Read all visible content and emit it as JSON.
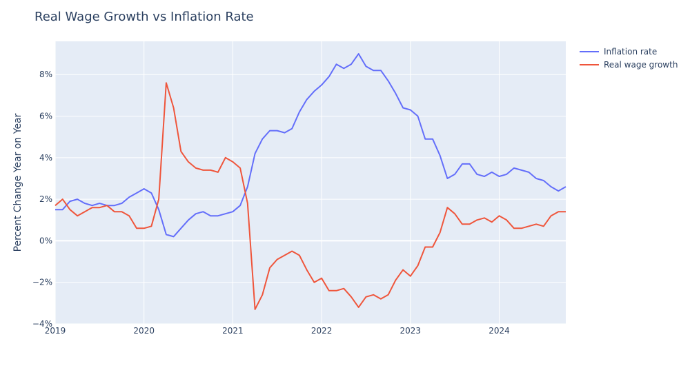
{
  "chart_data": {
    "type": "line",
    "title": "Real Wage Growth vs Inflation Rate",
    "xlabel": "",
    "ylabel": "Percent Change Year on Year",
    "xlim": [
      "2019-01",
      "2024-10"
    ],
    "ylim": [
      -4,
      9.6
    ],
    "x_ticks": [
      "2019",
      "2020",
      "2021",
      "2022",
      "2023",
      "2024"
    ],
    "y_ticks": [
      "−4%",
      "−2%",
      "0%",
      "2%",
      "4%",
      "6%",
      "8%"
    ],
    "grid": true,
    "legend_position": "top-right",
    "background_color": "#e5ecf6",
    "x": [
      "2019-01",
      "2019-02",
      "2019-03",
      "2019-04",
      "2019-05",
      "2019-06",
      "2019-07",
      "2019-08",
      "2019-09",
      "2019-10",
      "2019-11",
      "2019-12",
      "2020-01",
      "2020-02",
      "2020-03",
      "2020-04",
      "2020-05",
      "2020-06",
      "2020-07",
      "2020-08",
      "2020-09",
      "2020-10",
      "2020-11",
      "2020-12",
      "2021-01",
      "2021-02",
      "2021-03",
      "2021-04",
      "2021-05",
      "2021-06",
      "2021-07",
      "2021-08",
      "2021-09",
      "2021-10",
      "2021-11",
      "2021-12",
      "2022-01",
      "2022-02",
      "2022-03",
      "2022-04",
      "2022-05",
      "2022-06",
      "2022-07",
      "2022-08",
      "2022-09",
      "2022-10",
      "2022-11",
      "2022-12",
      "2023-01",
      "2023-02",
      "2023-03",
      "2023-04",
      "2023-05",
      "2023-06",
      "2023-07",
      "2023-08",
      "2023-09",
      "2023-10",
      "2023-11",
      "2023-12",
      "2024-01",
      "2024-02",
      "2024-03",
      "2024-04",
      "2024-05",
      "2024-06",
      "2024-07",
      "2024-08",
      "2024-09",
      "2024-10"
    ],
    "series": [
      {
        "name": "Inflation rate",
        "color": "#636efa",
        "values": [
          1.5,
          1.5,
          1.9,
          2.0,
          1.8,
          1.7,
          1.8,
          1.7,
          1.7,
          1.8,
          2.1,
          2.3,
          2.5,
          2.3,
          1.5,
          0.3,
          0.2,
          0.6,
          1.0,
          1.3,
          1.4,
          1.2,
          1.2,
          1.3,
          1.4,
          1.7,
          2.6,
          4.2,
          4.9,
          5.3,
          5.3,
          5.2,
          5.4,
          6.2,
          6.8,
          7.2,
          7.5,
          7.9,
          8.5,
          8.3,
          8.5,
          9.0,
          8.4,
          8.2,
          8.2,
          7.7,
          7.1,
          6.4,
          6.3,
          6.0,
          4.9,
          4.9,
          4.1,
          3.0,
          3.2,
          3.7,
          3.7,
          3.2,
          3.1,
          3.3,
          3.1,
          3.2,
          3.5,
          3.4,
          3.3,
          3.0,
          2.9,
          2.6,
          2.4,
          2.6
        ]
      },
      {
        "name": "Real wage growth",
        "color": "#ef553b",
        "values": [
          1.7,
          2.0,
          1.5,
          1.2,
          1.4,
          1.6,
          1.6,
          1.7,
          1.4,
          1.4,
          1.2,
          0.6,
          0.6,
          0.7,
          2.0,
          7.6,
          6.4,
          4.3,
          3.8,
          3.5,
          3.4,
          3.4,
          3.3,
          4.0,
          3.8,
          3.5,
          1.8,
          -3.3,
          -2.6,
          -1.3,
          -0.9,
          -0.7,
          -0.5,
          -0.7,
          -1.4,
          -2.0,
          -1.8,
          -2.4,
          -2.4,
          -2.3,
          -2.7,
          -3.2,
          -2.7,
          -2.6,
          -2.8,
          -2.6,
          -1.9,
          -1.4,
          -1.7,
          -1.2,
          -0.3,
          -0.3,
          0.4,
          1.6,
          1.3,
          0.8,
          0.8,
          1.0,
          1.1,
          0.9,
          1.2,
          1.0,
          0.6,
          0.6,
          0.7,
          0.8,
          0.7,
          1.2,
          1.4,
          1.4
        ]
      }
    ]
  }
}
